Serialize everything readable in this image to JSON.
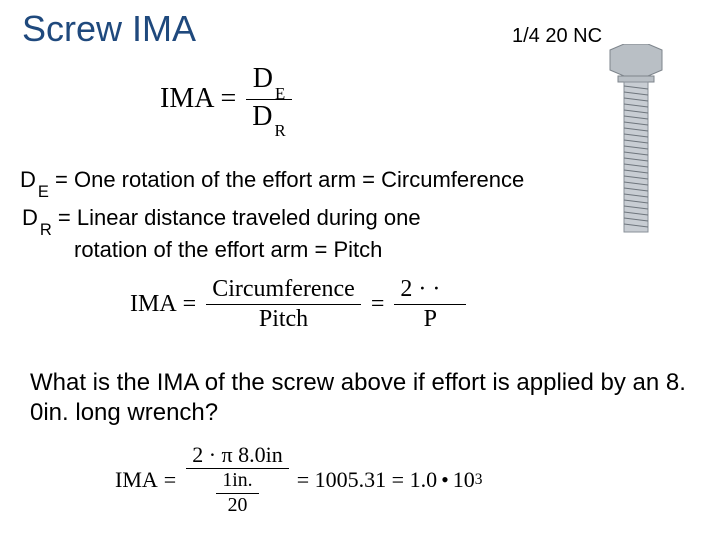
{
  "title": "Screw IMA",
  "spec": "1/4 20 NC",
  "formula1": {
    "lhs": "IMA",
    "eq": "=",
    "num_base": "D",
    "num_sub": "E",
    "den_base": "D",
    "den_sub": "R"
  },
  "def_de": {
    "base": "D",
    "sub": "E",
    "rest": " = One rotation of the effort arm = Circumference"
  },
  "def_dr": {
    "base": "D",
    "sub": "R",
    "line1_rest": " = Linear distance traveled during one",
    "line2": "rotation of the effort arm = Pitch"
  },
  "formula2": {
    "lhs": "IMA",
    "eq": "=",
    "num1": "Circumference",
    "den1": "Pitch",
    "num2": "2 ·   ·",
    "den2": "P"
  },
  "question": "What is the IMA of the screw above if effort is applied by an 8. 0in. long wrench?",
  "formula3": {
    "lhs": "IMA",
    "eq": "=",
    "num_outer": "2 ·  π   8.0in",
    "den_inner_num": "1in.",
    "den_inner_den": "20",
    "result1": "= 1005.31 = 1.0",
    "bullet": "•",
    "ten": "10",
    "exp": "3"
  },
  "screw_style": {
    "head_fill": "#b9bfc5",
    "head_stroke": "#7e858c",
    "shaft_fill": "#c8cdd3",
    "shaft_stroke": "#8a9199",
    "thread_stroke": "#6e757c"
  }
}
